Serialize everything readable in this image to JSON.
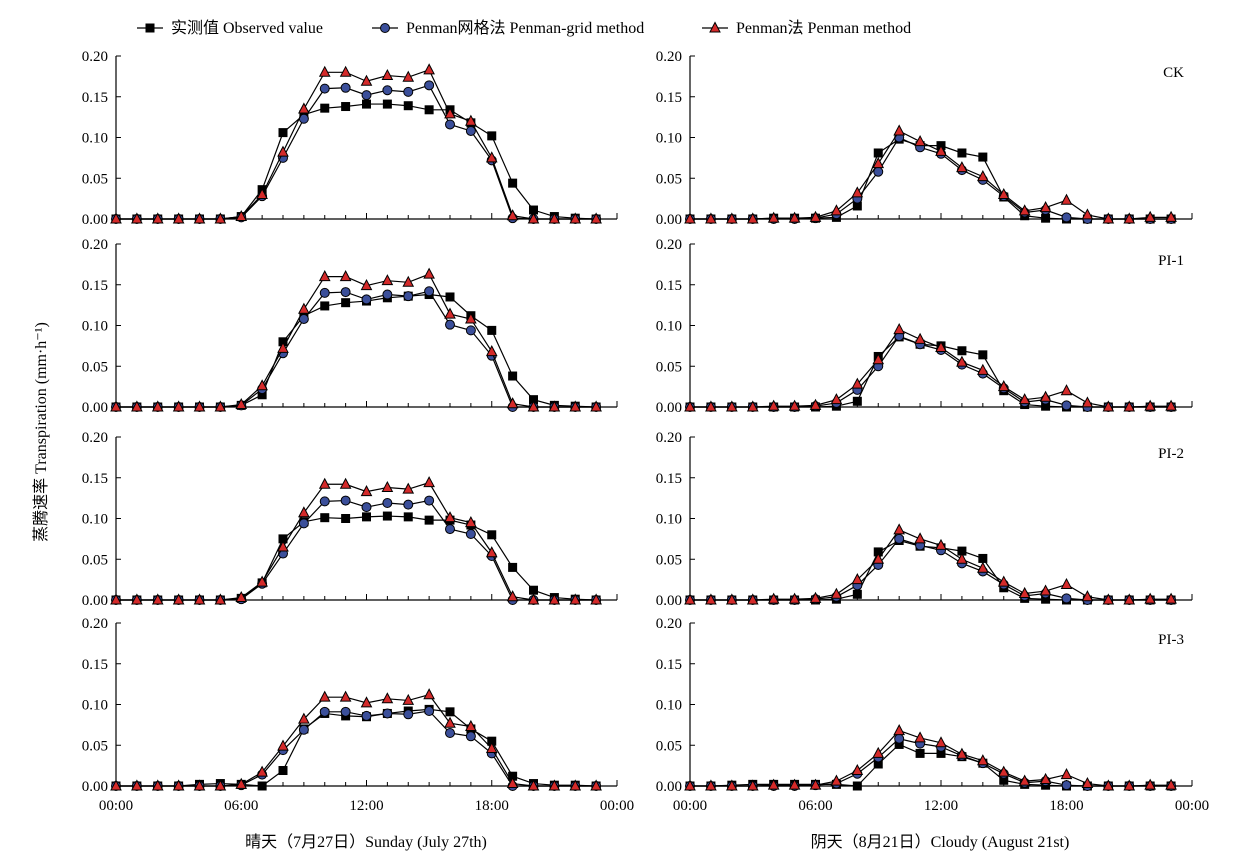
{
  "legend": [
    {
      "key": "observed",
      "label": "实测值 Observed value",
      "marker": "square",
      "color": "#000000"
    },
    {
      "key": "grid",
      "label": "Penman网格法 Penman-grid method",
      "marker": "circle",
      "color": "#3b4f9a"
    },
    {
      "key": "penman",
      "label": "Penman法 Penman method",
      "marker": "triangle",
      "color": "#d42a2a"
    }
  ],
  "y_axis_title": "蒸腾速率 Transpiration (mm·h⁻¹)",
  "column_titles": [
    "晴天（7月27日）Sunday (July 27th)",
    "阴天（8月21日）Cloudy (August 21st)"
  ],
  "x_tick_labels": [
    "00:00",
    "06:00",
    "12:00",
    "18:00",
    "00:00"
  ],
  "y_tick_labels": [
    "0.00",
    "0.05",
    "0.10",
    "0.15",
    "0.20"
  ],
  "chart_data": {
    "type": "line",
    "x_unit": "hour",
    "x": [
      0,
      1,
      2,
      3,
      4,
      5,
      6,
      7,
      8,
      9,
      10,
      11,
      12,
      13,
      14,
      15,
      16,
      17,
      18,
      19,
      20,
      21,
      22,
      23
    ],
    "xlim": [
      0,
      24
    ],
    "ylim": [
      0,
      0.2
    ],
    "y_ticks": [
      0,
      0.05,
      0.1,
      0.15,
      0.2
    ],
    "x_ticks": [
      0,
      6,
      12,
      18,
      24
    ],
    "panels": [
      {
        "label": "",
        "column": "sunny",
        "row": 0,
        "series": [
          {
            "name": "实测值 Observed value",
            "values": [
              0,
              0,
              0,
              0,
              0,
              0,
              0.003,
              0.036,
              0.106,
              0.128,
              0.136,
              0.138,
              0.141,
              0.141,
              0.139,
              0.134,
              0.134,
              0.118,
              0.102,
              0.044,
              0.011,
              0.003,
              0.001,
              0
            ]
          },
          {
            "name": "Penman网格法 Penman-grid method",
            "values": [
              0,
              0,
              0,
              0,
              0,
              0,
              0.002,
              0.028,
              0.075,
              0.123,
              0.16,
              0.161,
              0.152,
              0.158,
              0.156,
              0.164,
              0.116,
              0.108,
              0.072,
              0.001,
              0,
              0,
              0,
              0
            ]
          },
          {
            "name": "Penman法 Penman method",
            "values": [
              0,
              0,
              0,
              0,
              0,
              0,
              0.003,
              0.03,
              0.082,
              0.135,
              0.18,
              0.18,
              0.169,
              0.176,
              0.174,
              0.183,
              0.129,
              0.12,
              0.075,
              0.004,
              0,
              0,
              0,
              0
            ]
          }
        ]
      },
      {
        "label": "CK",
        "column": "cloudy",
        "row": 0,
        "series": [
          {
            "name": "实测值 Observed value",
            "values": [
              0,
              0,
              0,
              0,
              0.001,
              0.001,
              0.001,
              0.002,
              0.016,
              0.081,
              0.098,
              0.09,
              0.09,
              0.081,
              0.076,
              0.027,
              0.004,
              0.001,
              0,
              0,
              0,
              0,
              0,
              0
            ]
          },
          {
            "name": "Penman网格法 Penman-grid method",
            "values": [
              0,
              0,
              0,
              0,
              0,
              0,
              0.001,
              0.006,
              0.025,
              0.058,
              0.1,
              0.088,
              0.08,
              0.06,
              0.048,
              0.028,
              0.008,
              0.011,
              0.002,
              0,
              0,
              0,
              0,
              0
            ]
          },
          {
            "name": "Penman法 Penman method",
            "values": [
              0,
              0,
              0,
              0,
              0.001,
              0.001,
              0.002,
              0.01,
              0.032,
              0.068,
              0.108,
              0.095,
              0.083,
              0.063,
              0.052,
              0.03,
              0.01,
              0.014,
              0.023,
              0.005,
              0,
              0,
              0.002,
              0.002
            ]
          }
        ]
      },
      {
        "label": "",
        "column": "sunny",
        "row": 1,
        "series": [
          {
            "name": "实测值 Observed value",
            "values": [
              0,
              0,
              0,
              0,
              0,
              0,
              0.002,
              0.015,
              0.08,
              0.112,
              0.124,
              0.128,
              0.13,
              0.134,
              0.136,
              0.138,
              0.135,
              0.112,
              0.094,
              0.038,
              0.009,
              0.002,
              0.001,
              0
            ]
          },
          {
            "name": "Penman网格法 Penman-grid method",
            "values": [
              0,
              0,
              0,
              0,
              0,
              0,
              0.002,
              0.022,
              0.066,
              0.108,
              0.14,
              0.141,
              0.132,
              0.138,
              0.136,
              0.142,
              0.101,
              0.094,
              0.063,
              0,
              0,
              0,
              0,
              0
            ]
          },
          {
            "name": "Penman法 Penman method",
            "values": [
              0,
              0,
              0,
              0,
              0,
              0,
              0.003,
              0.026,
              0.072,
              0.12,
              0.16,
              0.16,
              0.149,
              0.155,
              0.153,
              0.163,
              0.114,
              0.108,
              0.068,
              0.004,
              0,
              0,
              0,
              0
            ]
          }
        ]
      },
      {
        "label": "PI-1",
        "column": "cloudy",
        "row": 1,
        "series": [
          {
            "name": "实测值 Observed value",
            "values": [
              0,
              0,
              0,
              0,
              0,
              0,
              0,
              0.001,
              0.007,
              0.062,
              0.086,
              0.077,
              0.075,
              0.069,
              0.064,
              0.02,
              0.003,
              0.001,
              0,
              0,
              0,
              0,
              0,
              0
            ]
          },
          {
            "name": "Penman网格法 Penman-grid method",
            "values": [
              0,
              0,
              0,
              0,
              0,
              0,
              0.001,
              0.005,
              0.021,
              0.05,
              0.087,
              0.077,
              0.07,
              0.052,
              0.041,
              0.023,
              0.006,
              0.009,
              0.002,
              0,
              0,
              0,
              0,
              0
            ]
          },
          {
            "name": "Penman法 Penman method",
            "values": [
              0,
              0,
              0,
              0,
              0.001,
              0.001,
              0.002,
              0.009,
              0.028,
              0.058,
              0.095,
              0.083,
              0.073,
              0.055,
              0.045,
              0.025,
              0.009,
              0.012,
              0.02,
              0.005,
              0,
              0,
              0.001,
              0.001
            ]
          }
        ]
      },
      {
        "label": "",
        "column": "sunny",
        "row": 2,
        "series": [
          {
            "name": "实测值 Observed value",
            "values": [
              0,
              0,
              0,
              0,
              0,
              0,
              0.002,
              0.021,
              0.075,
              0.096,
              0.101,
              0.1,
              0.102,
              0.103,
              0.102,
              0.098,
              0.098,
              0.092,
              0.08,
              0.04,
              0.012,
              0.003,
              0.001,
              0
            ]
          },
          {
            "name": "Penman网格法 Penman-grid method",
            "values": [
              0,
              0,
              0,
              0,
              0,
              0,
              0.001,
              0.02,
              0.057,
              0.094,
              0.121,
              0.122,
              0.114,
              0.119,
              0.117,
              0.122,
              0.087,
              0.081,
              0.054,
              0,
              0,
              0,
              0,
              0
            ]
          },
          {
            "name": "Penman法 Penman method",
            "values": [
              0,
              0,
              0,
              0,
              0,
              0,
              0.003,
              0.022,
              0.065,
              0.107,
              0.142,
              0.142,
              0.133,
              0.138,
              0.136,
              0.144,
              0.101,
              0.095,
              0.058,
              0.004,
              0,
              0,
              0,
              0
            ]
          }
        ]
      },
      {
        "label": "PI-2",
        "column": "cloudy",
        "row": 2,
        "series": [
          {
            "name": "实测值 Observed value",
            "values": [
              0,
              0,
              0,
              0,
              0,
              0,
              0,
              0.001,
              0.007,
              0.059,
              0.073,
              0.066,
              0.064,
              0.06,
              0.051,
              0.015,
              0.002,
              0.001,
              0,
              0,
              0,
              0,
              0,
              0
            ]
          },
          {
            "name": "Penman网格法 Penman-grid method",
            "values": [
              0,
              0,
              0,
              0,
              0,
              0,
              0.001,
              0.004,
              0.018,
              0.043,
              0.075,
              0.067,
              0.061,
              0.045,
              0.035,
              0.019,
              0.005,
              0.008,
              0.002,
              0,
              0,
              0,
              0,
              0
            ]
          },
          {
            "name": "Penman法 Penman method",
            "values": [
              0,
              0,
              0,
              0,
              0.001,
              0.001,
              0.002,
              0.007,
              0.025,
              0.05,
              0.086,
              0.075,
              0.067,
              0.05,
              0.039,
              0.022,
              0.008,
              0.011,
              0.019,
              0.004,
              0,
              0,
              0.001,
              0.001
            ]
          }
        ]
      },
      {
        "label": "",
        "column": "sunny",
        "row": 3,
        "series": [
          {
            "name": "实测值 Observed value",
            "values": [
              0,
              0,
              0,
              0,
              0.002,
              0.003,
              0.002,
              0,
              0.019,
              0.07,
              0.089,
              0.086,
              0.085,
              0.089,
              0.092,
              0.094,
              0.091,
              0.07,
              0.055,
              0.012,
              0.003,
              0.001,
              0.001,
              0
            ]
          },
          {
            "name": "Penman网格法 Penman-grid method",
            "values": [
              0,
              0,
              0,
              0,
              0,
              0,
              0.001,
              0.014,
              0.044,
              0.069,
              0.091,
              0.091,
              0.086,
              0.089,
              0.088,
              0.092,
              0.065,
              0.061,
              0.04,
              0,
              0,
              0,
              0,
              0
            ]
          },
          {
            "name": "Penman法 Penman method",
            "values": [
              0,
              0,
              0,
              0,
              0,
              0,
              0.002,
              0.017,
              0.049,
              0.082,
              0.109,
              0.109,
              0.102,
              0.107,
              0.105,
              0.112,
              0.077,
              0.073,
              0.046,
              0.003,
              0,
              0,
              0,
              0
            ]
          }
        ]
      },
      {
        "label": "PI-3",
        "column": "cloudy",
        "row": 3,
        "series": [
          {
            "name": "实测值 Observed value",
            "values": [
              0,
              0,
              0.001,
              0.002,
              0.002,
              0.002,
              0.002,
              0.002,
              0,
              0.027,
              0.051,
              0.04,
              0.04,
              0.036,
              0.028,
              0.007,
              0.002,
              0.001,
              0,
              0,
              0,
              0,
              0,
              0
            ]
          },
          {
            "name": "Penman网格法 Penman-grid method",
            "values": [
              0,
              0,
              0,
              0,
              0,
              0,
              0.001,
              0.003,
              0.015,
              0.035,
              0.058,
              0.052,
              0.048,
              0.037,
              0.028,
              0.015,
              0.004,
              0.006,
              0.001,
              0,
              0,
              0,
              0,
              0
            ]
          },
          {
            "name": "Penman法 Penman method",
            "values": [
              0,
              0,
              0,
              0,
              0.001,
              0.001,
              0.001,
              0.006,
              0.019,
              0.04,
              0.068,
              0.059,
              0.053,
              0.039,
              0.031,
              0.017,
              0.006,
              0.008,
              0.014,
              0.003,
              0,
              0,
              0.001,
              0.001
            ]
          }
        ]
      }
    ]
  }
}
